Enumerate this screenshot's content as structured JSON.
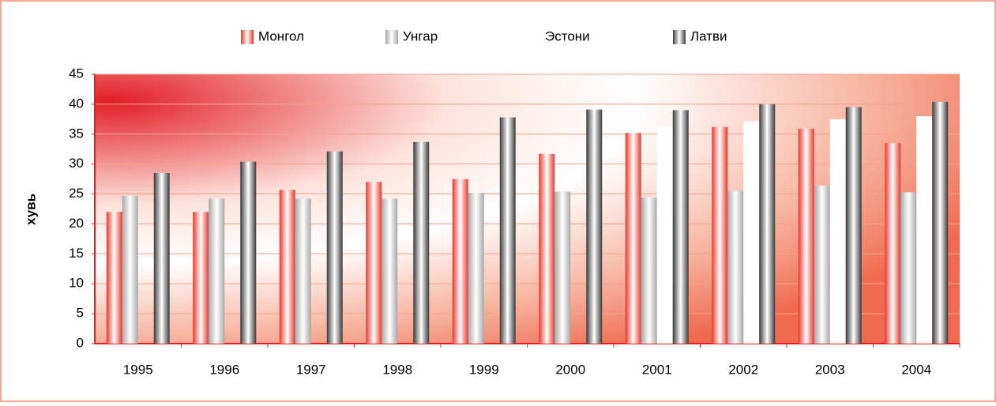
{
  "chart_data": {
    "type": "bar",
    "y_label": "хувь",
    "categories": [
      "1995",
      "1996",
      "1997",
      "1998",
      "1999",
      "2000",
      "2001",
      "2002",
      "2003",
      "2004"
    ],
    "series": [
      {
        "name": "Монгол",
        "color": "#e8382c",
        "values": [
          22,
          22,
          25.7,
          27,
          27.5,
          31.7,
          35.2,
          36.2,
          35.9,
          33.5
        ]
      },
      {
        "name": "Унгар",
        "color": "#a8a8a8",
        "values": [
          24.7,
          24.2,
          24.2,
          24.2,
          25.2,
          25.4,
          24.4,
          25.5,
          26.4,
          25.3
        ]
      },
      {
        "name": "Эстони",
        "color": "#ffffff",
        "values": [
          null,
          null,
          null,
          null,
          null,
          null,
          36.3,
          37.2,
          37.5,
          38
        ]
      },
      {
        "name": "Латви",
        "color": "#3a3a3a",
        "values": [
          28.5,
          30.4,
          32.1,
          33.7,
          37.8,
          39.1,
          39,
          40,
          39.5,
          40.4
        ]
      }
    ],
    "ylim": [
      0,
      45
    ],
    "yticks": [
      0,
      5,
      10,
      15,
      20,
      25,
      30,
      35,
      40,
      45
    ],
    "grid": true,
    "legend": "top"
  }
}
